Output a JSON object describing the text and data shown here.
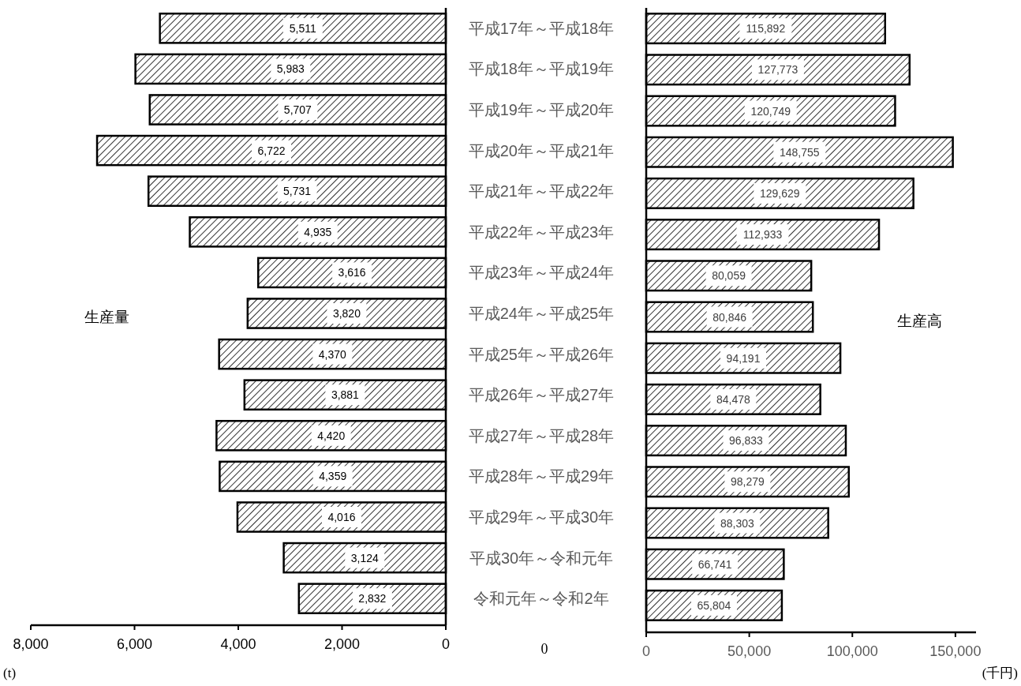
{
  "chart_data": [
    {
      "type": "bar",
      "orientation": "horizontal",
      "ylabel": "生産量",
      "categories": [
        "平成17年～平成18年",
        "平成18年～平成19年",
        "平成19年～平成20年",
        "平成20年～平成21年",
        "平成21年～平成22年",
        "平成22年～平成23年",
        "平成23年～平成24年",
        "平成24年～平成25年",
        "平成25年～平成26年",
        "平成26年～平成27年",
        "平成27年～平成28年",
        "平成28年～平成29年",
        "平成29年～平成30年",
        "平成30年～令和元年",
        "令和元年～令和2年"
      ],
      "series": [
        {
          "color": "#000000",
          "values": [
            5511,
            5983,
            5707,
            6722,
            5731,
            4935,
            3616,
            3820,
            4370,
            3881,
            4420,
            4359,
            4016,
            3124,
            2832
          ],
          "value_labels": [
            "5,511",
            "5,983",
            "5,707",
            "6,722",
            "5,731",
            "4,935",
            "3,616",
            "3,820",
            "4,370",
            "3,881",
            "4,420",
            "4,359",
            "4,016",
            "3,124",
            "2,832"
          ]
        }
      ],
      "xlim": [
        8000,
        0
      ],
      "xticks": [
        {
          "value": 8000,
          "label": "8,000"
        },
        {
          "value": 6000,
          "label": "6,000"
        },
        {
          "value": 4000,
          "label": "4,000"
        },
        {
          "value": 2000,
          "label": "2,000"
        },
        0
      ],
      "annotations": [
        "(t)"
      ]
    },
    {
      "type": "bar",
      "orientation": "horizontal",
      "ylabel": "生産高",
      "series": [
        {
          "color": "#000000",
          "values": [
            115892,
            127773,
            120749,
            148755,
            129629,
            112933,
            80059,
            80846,
            94191,
            84478,
            96833,
            98279,
            88303,
            66741,
            65804
          ],
          "value_labels": [
            "115,892",
            "127,773",
            "120,749",
            "148,755",
            "129,629",
            "112,933",
            "80,059",
            "80,846",
            "94,191",
            "84,478",
            "96,833",
            "98,279",
            "88,303",
            "66,741",
            "65,804"
          ]
        }
      ],
      "xlim": [
        0,
        160000
      ],
      "xticks": [
        0,
        {
          "value": 50000,
          "label": "50,000"
        },
        {
          "value": 100000,
          "label": "100,000"
        },
        {
          "value": 150000,
          "label": "150,000"
        }
      ],
      "tick_labels": "x",
      "annotations": [
        "0",
        "(千円)"
      ]
    }
  ]
}
